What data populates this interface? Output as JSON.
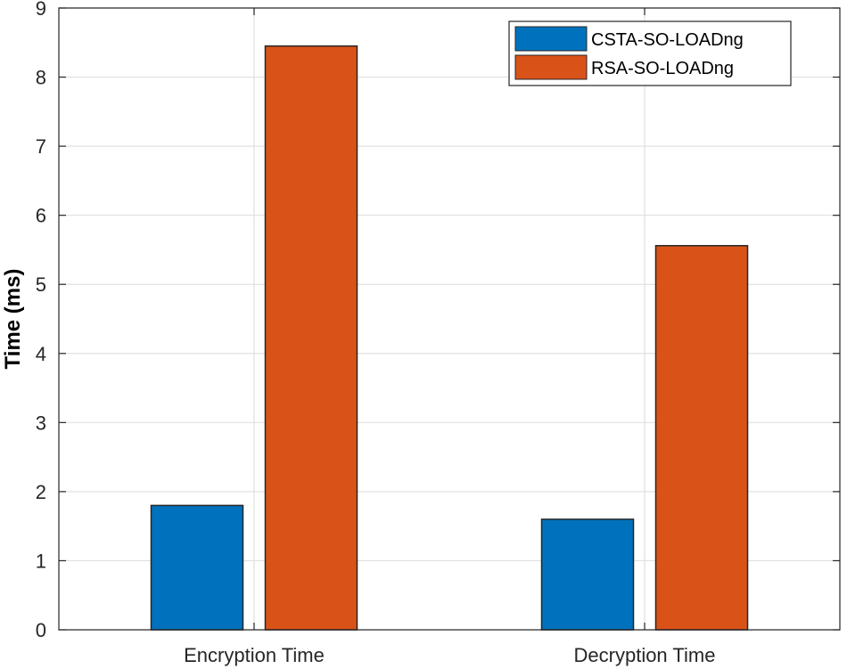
{
  "chart_data": {
    "type": "bar",
    "title": "",
    "xlabel": "",
    "ylabel": "Time (ms)",
    "categories": [
      "Encryption Time",
      "Decryption Time"
    ],
    "series": [
      {
        "name": "CSTA-SO-LOADng",
        "color": "#0072BD",
        "values": [
          1.8,
          1.6
        ]
      },
      {
        "name": "RSA-SO-LOADng",
        "color": "#D95319",
        "values": [
          8.45,
          5.56
        ]
      }
    ],
    "ylim": [
      0,
      9
    ],
    "yticks": [
      "0",
      "1",
      "2",
      "3",
      "4",
      "5",
      "6",
      "7",
      "8",
      "9"
    ],
    "grid": true,
    "legend_position": "top-right"
  }
}
